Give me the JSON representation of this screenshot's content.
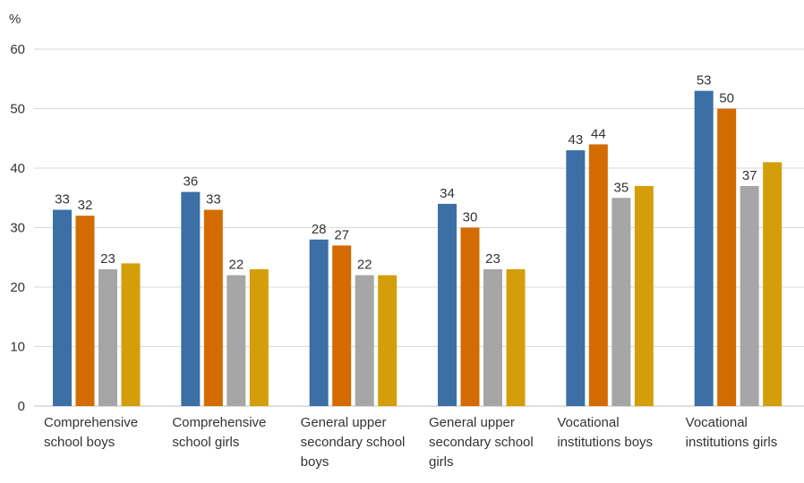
{
  "chart_data": {
    "type": "bar",
    "ylabel": "%",
    "ylim": [
      0,
      60
    ],
    "yticks": [
      0,
      10,
      20,
      30,
      40,
      50,
      60
    ],
    "grid": true,
    "legend": "none",
    "categories": [
      [
        "Comprehensive",
        "school boys"
      ],
      [
        "Comprehensive",
        "school girls"
      ],
      [
        "General upper",
        "secondary school",
        "boys"
      ],
      [
        "General upper",
        "secondary school",
        "girls"
      ],
      [
        "Vocational",
        "institutions boys"
      ],
      [
        "Vocational",
        "institutions girls"
      ]
    ],
    "series": [
      {
        "color": "#3b6fa6",
        "values": [
          33,
          36,
          28,
          34,
          43,
          53
        ],
        "labels": [
          "33",
          "36",
          "28",
          "34",
          "43",
          "53"
        ]
      },
      {
        "color": "#d46b00",
        "values": [
          32,
          33,
          27,
          30,
          44,
          50
        ],
        "labels": [
          "32",
          "33",
          "27",
          "30",
          "44",
          "50"
        ]
      },
      {
        "color": "#a6a6a6",
        "values": [
          23,
          22,
          22,
          23,
          35,
          37
        ],
        "labels": [
          "23",
          "22",
          "22",
          "23",
          "35",
          "37"
        ]
      },
      {
        "color": "#d49e0a",
        "values": [
          24,
          23,
          22,
          23,
          37,
          41
        ],
        "labels": [
          "",
          "",
          "",
          "",
          "",
          ""
        ]
      }
    ]
  }
}
